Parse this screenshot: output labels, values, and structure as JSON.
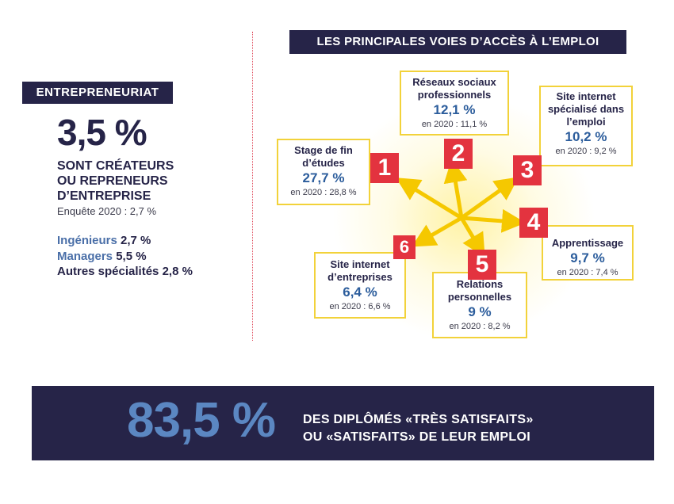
{
  "left": {
    "badge": "ENTREPRENEURIAT",
    "big_value": "3,5 %",
    "line1": "SONT CRÉATEURS",
    "line2": "OU REPRENEURS",
    "line3": "D’ENTREPRISE",
    "survey": "Enquête 2020 : 2,7 %",
    "specialties": [
      {
        "label": "Ingénieurs",
        "value": "2,7 %",
        "color": "#4a6fa8"
      },
      {
        "label": "Managers",
        "value": "5,5 %",
        "color": "#4a6fa8"
      },
      {
        "label": "Autres spécialités",
        "value": "2,8 %",
        "color": "#262448"
      }
    ]
  },
  "right": {
    "title": "LES PRINCIPALES VOIES D’ACCÈS À L’EMPLOI",
    "items": [
      {
        "num": "1",
        "title1": "Stage de fin",
        "title2": "d’études",
        "value": "27,7 %",
        "prev": "en 2020 : 28,8 %"
      },
      {
        "num": "2",
        "title1": "Réseaux sociaux",
        "title2": "professionnels",
        "value": "12,1 %",
        "prev": "en 2020 : 11,1 %"
      },
      {
        "num": "3",
        "title1": "Site internet",
        "title2": "spécialisé dans",
        "title3": "l’emploi",
        "value": "10,2 %",
        "prev": "en 2020 : 9,2 %"
      },
      {
        "num": "4",
        "title1": "Apprentissage",
        "value": "9,7 %",
        "prev": "en 2020 : 7,4 %"
      },
      {
        "num": "5",
        "title1": "Relations",
        "title2": "personnelles",
        "value": "9 %",
        "prev": "en 2020 : 8,2 %"
      },
      {
        "num": "6",
        "title1": "Site internet",
        "title2": "d’entreprises",
        "value": "6,4 %",
        "prev": "en 2020 : 6,6 %"
      }
    ]
  },
  "banner": {
    "big_value": "83,5 %",
    "line1": "DES DIPLÔMÉS «TRÈS SATISFAITS»",
    "line2": "OU «SATISFAITS» DE LEUR EMPLOI"
  },
  "colors": {
    "navy": "#262448",
    "blue": "#2c5d9c",
    "red": "#e3333f",
    "yellow": "#f2d23a",
    "arrow": "#f5c800"
  }
}
